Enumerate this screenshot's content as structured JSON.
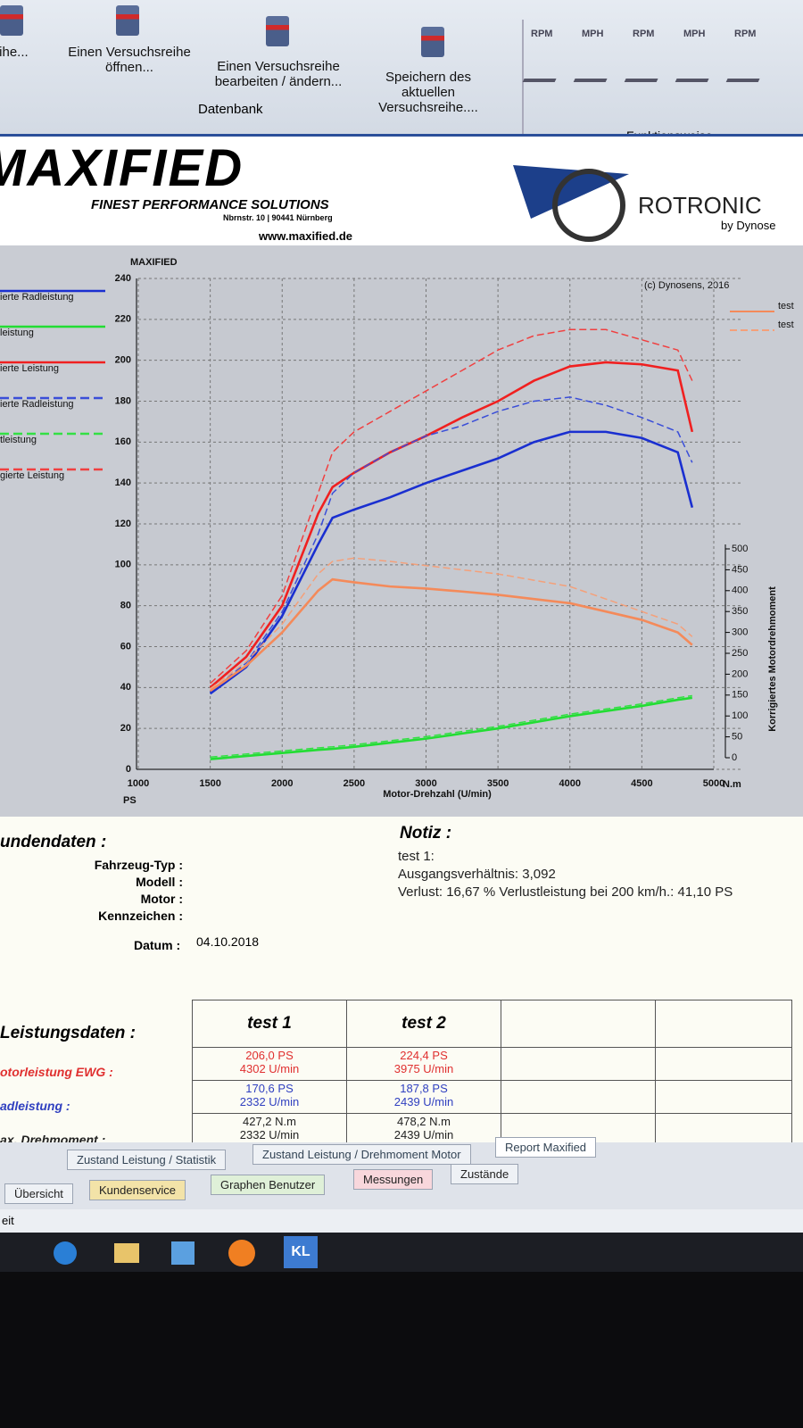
{
  "toolbar": {
    "buttons": [
      "er reihe...",
      "Einen Versuchsreihe öffnen...",
      "Einen Versuchsreihe bearbeiten / ändern...",
      "Speichern des aktuellen Versuchsreihe...."
    ],
    "group": "Datenbank",
    "modes": [
      "RPM",
      "MPH",
      "RPM",
      "MPH",
      "RPM"
    ],
    "modes_group": "Funktionsweise"
  },
  "header": {
    "logo": "MAXIFIED",
    "slogan": "FINEST PERFORMANCE SOLUTIONS",
    "address": "Nbrnstr. 10 | 90441 Nürnberg",
    "url": "www.maxified.de",
    "partner": "ROTRONIC",
    "partner_sub": "by Dynose"
  },
  "chart_data": {
    "type": "line",
    "title": "MAXIFIED",
    "credit": "(c) Dynosens, 2016",
    "x_label": "Motor-Drehzahl (U/min)",
    "y_label": "PS",
    "y2_label": "Korrigiertes Motordrehmoment",
    "y2_unit": "N.m",
    "x": [
      1500,
      1750,
      2000,
      2250,
      2350,
      2500,
      2750,
      3000,
      3250,
      3500,
      3750,
      4000,
      4250,
      4500,
      4750,
      4850
    ],
    "xlim": [
      1000,
      5000
    ],
    "xticks": [
      1000,
      1500,
      2000,
      2500,
      3000,
      3500,
      4000,
      4500,
      5000
    ],
    "ylim": [
      0,
      240
    ],
    "yticks": [
      0,
      20,
      40,
      60,
      80,
      100,
      120,
      140,
      160,
      180,
      200,
      220,
      240
    ],
    "y2lim": [
      0,
      500
    ],
    "y2ticks": [
      0,
      50,
      100,
      150,
      200,
      250,
      300,
      350,
      400,
      450,
      500
    ],
    "grid": true,
    "series": [
      {
        "name": "ierte Radleistung",
        "color": "#1a2fd0",
        "style": "solid",
        "values": [
          37,
          50,
          75,
          110,
          123,
          127,
          133,
          140,
          146,
          152,
          160,
          165,
          165,
          162,
          155,
          128
        ]
      },
      {
        "name": "leistung",
        "color": "#22dd33",
        "style": "solid",
        "values": [
          5,
          6.5,
          8,
          9.5,
          10,
          11,
          13,
          15,
          17.5,
          20,
          23,
          26,
          28.5,
          31,
          34,
          35
        ]
      },
      {
        "name": "ierte Leistung",
        "color": "#f02020",
        "style": "solid",
        "values": [
          40,
          55,
          80,
          125,
          138,
          145,
          155,
          163,
          172,
          180,
          190,
          197,
          199,
          198,
          195,
          165
        ]
      },
      {
        "name": "ierte Radleistung",
        "color": "#3a4ed8",
        "style": "dashed",
        "values": [
          38,
          52,
          77,
          115,
          135,
          145,
          155,
          163,
          168,
          175,
          180,
          182,
          178,
          172,
          165,
          150
        ]
      },
      {
        "name": "tleistung",
        "color": "#33e044",
        "style": "dashed",
        "values": [
          6,
          7.5,
          9,
          10.5,
          11,
          12,
          14,
          16,
          18.5,
          21,
          24,
          27,
          29.5,
          32,
          35,
          36
        ]
      },
      {
        "name": "gierte Leistung",
        "color": "#f04040",
        "style": "dashed",
        "values": [
          42,
          58,
          85,
          135,
          155,
          165,
          175,
          185,
          195,
          205,
          212,
          215,
          215,
          210,
          205,
          190
        ]
      },
      {
        "name": "test",
        "color": "#f48a5a",
        "style": "solid",
        "axis": "y2",
        "values": [
          160,
          220,
          300,
          400,
          427,
          420,
          410,
          405,
          398,
          390,
          380,
          370,
          350,
          330,
          300,
          270
        ]
      },
      {
        "name": "test",
        "color": "#f4a07a",
        "style": "dashed",
        "axis": "y2",
        "values": [
          165,
          230,
          320,
          440,
          470,
          478,
          470,
          460,
          450,
          440,
          425,
          410,
          380,
          350,
          320,
          290
        ]
      }
    ]
  },
  "customer": {
    "title": "undendaten :",
    "fields": [
      "Fahrzeug-Typ :",
      "Modell :",
      "Motor :",
      "Kennzeichen :"
    ],
    "date_label": "Datum :",
    "date": "04.10.2018"
  },
  "notes": {
    "title": "Notiz :",
    "lines": [
      "test 1:",
      "Ausgangsverhältnis: 3,092",
      "Verlust: 16,67 %  Verlustleistung bei 200 km/h.: 41,10 PS"
    ]
  },
  "performance": {
    "title": "Leistungsdaten :",
    "columns": [
      "test 1",
      "test 2"
    ],
    "rows": [
      {
        "label": "otorleistung EWG :",
        "cells": [
          [
            "206,0 PS",
            "4302 U/min"
          ],
          [
            "224,4 PS",
            "3975 U/min"
          ]
        ]
      },
      {
        "label": "adleistung :",
        "cells": [
          [
            "170,6 PS",
            "2332 U/min"
          ],
          [
            "187,8 PS",
            "2439 U/min"
          ]
        ]
      },
      {
        "label": "ax. Drehmoment :",
        "cells": [
          [
            "427,2 N.m",
            "2332 U/min"
          ],
          [
            "478,2 N.m",
            "2439 U/min"
          ]
        ]
      }
    ]
  },
  "tabs": {
    "report": [
      "Zustand Leistung / Statistik",
      "Zustand Leistung / Drehmoment Motor",
      "Report Maxified"
    ],
    "main": [
      "Übersicht",
      "Kundenservice",
      "Graphen Benutzer",
      "Messungen",
      "Zustände"
    ]
  },
  "status": "eit",
  "taskbar": {
    "app": "KL"
  }
}
